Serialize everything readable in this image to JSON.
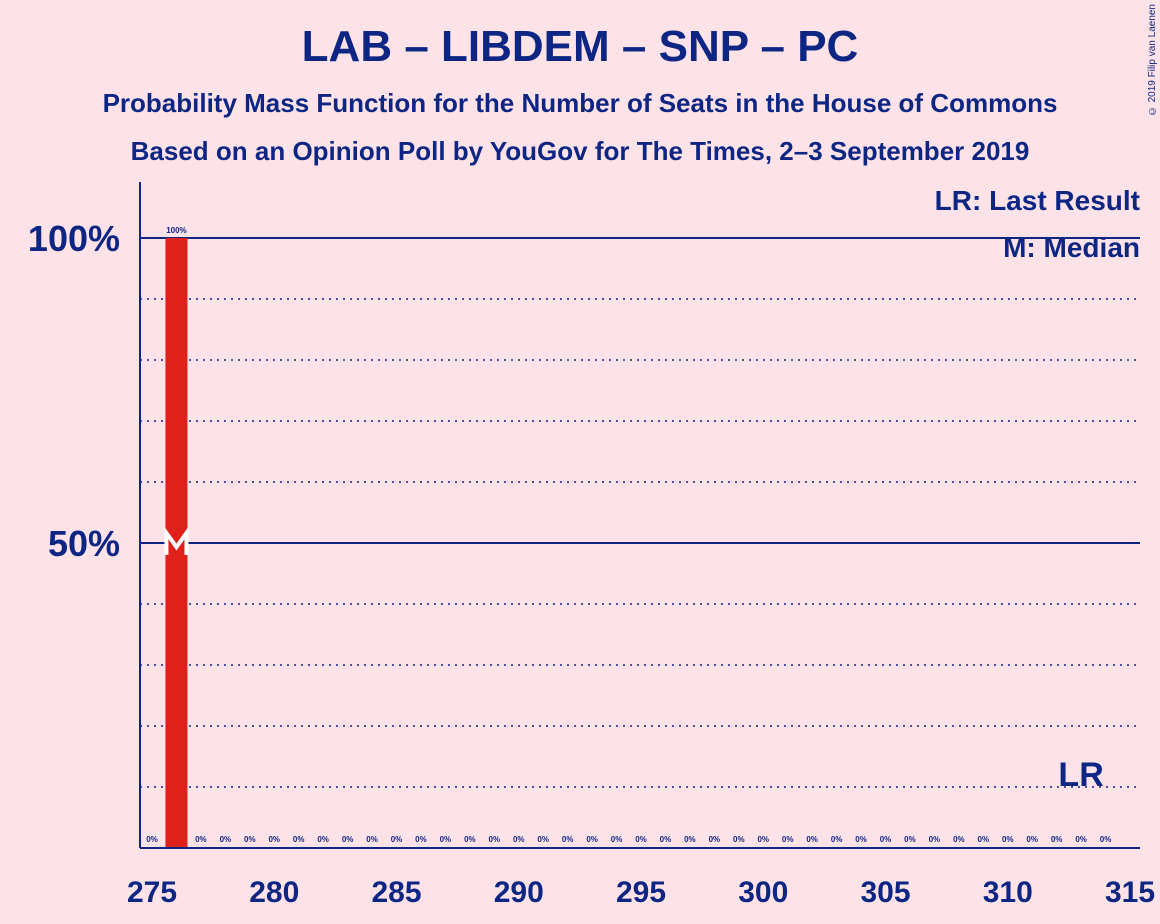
{
  "chart_data": {
    "type": "bar",
    "title": "LAB – LIBDEM – SNP – PC",
    "subtitle": "Probability Mass Function for the Number of Seats in the House of Commons",
    "subtitle2": "Based on an Opinion Poll by YouGov for The Times, 2–3 September 2019",
    "copyright": "© 2019 Filip van Laenen",
    "legend": [
      "LR: Last Result",
      "M: Median"
    ],
    "x": [
      275,
      276,
      277,
      278,
      279,
      280,
      281,
      282,
      283,
      284,
      285,
      286,
      287,
      288,
      289,
      290,
      291,
      292,
      293,
      294,
      295,
      296,
      297,
      298,
      299,
      300,
      301,
      302,
      303,
      304,
      305,
      306,
      307,
      308,
      309,
      310,
      311,
      312,
      313,
      314
    ],
    "values": [
      0,
      100,
      0,
      0,
      0,
      0,
      0,
      0,
      0,
      0,
      0,
      0,
      0,
      0,
      0,
      0,
      0,
      0,
      0,
      0,
      0,
      0,
      0,
      0,
      0,
      0,
      0,
      0,
      0,
      0,
      0,
      0,
      0,
      0,
      0,
      0,
      0,
      0,
      0,
      0
    ],
    "labels": [
      "0%",
      "100%",
      "0%",
      "0%",
      "0%",
      "0%",
      "0%",
      "0%",
      "0%",
      "0%",
      "0%",
      "0%",
      "0%",
      "0%",
      "0%",
      "0%",
      "0%",
      "0%",
      "0%",
      "0%",
      "0%",
      "0%",
      "0%",
      "0%",
      "0%",
      "0%",
      "0%",
      "0%",
      "0%",
      "0%",
      "0%",
      "0%",
      "0%",
      "0%",
      "0%",
      "0%",
      "0%",
      "0%",
      "0%",
      "0%"
    ],
    "xticks": [
      275,
      280,
      285,
      290,
      295,
      300,
      305,
      310,
      315
    ],
    "xtick_labels": [
      "275",
      "280",
      "285",
      "290",
      "295",
      "300",
      "305",
      "310",
      "315"
    ],
    "yticks": [
      50,
      100
    ],
    "ytick_labels": [
      "50%",
      "100%"
    ],
    "ylim": [
      0,
      110
    ],
    "xlim": [
      275,
      315
    ],
    "median": 276,
    "median_marker": "M",
    "median_level": 50,
    "last_result": 313,
    "last_result_marker": "LR",
    "bar_color": "#e0201b",
    "axis_color": "#0d2583",
    "background": "#fde3e7"
  }
}
